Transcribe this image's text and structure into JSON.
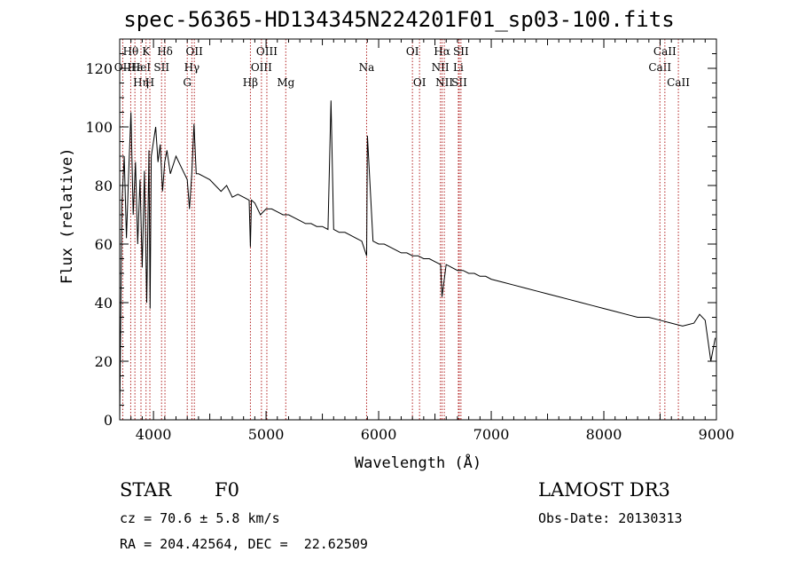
{
  "chart_data": {
    "type": "line",
    "title": "spec-56365-HD134345N224201F01_sp03-100.fits",
    "xlabel": "Wavelength (Å)",
    "ylabel": "Flux (relative)",
    "xlim": [
      3700,
      9000
    ],
    "ylim": [
      0,
      130
    ],
    "x_ticks": [
      4000,
      5000,
      6000,
      7000,
      8000,
      9000
    ],
    "y_ticks": [
      0,
      20,
      40,
      60,
      80,
      100,
      120
    ],
    "series": [
      {
        "name": "flux",
        "x": [
          3700,
          3720,
          3740,
          3760,
          3780,
          3800,
          3820,
          3840,
          3860,
          3880,
          3900,
          3920,
          3940,
          3960,
          3970,
          3980,
          4000,
          4020,
          4040,
          4060,
          4080,
          4100,
          4120,
          4150,
          4200,
          4250,
          4300,
          4320,
          4340,
          4360,
          4380,
          4400,
          4450,
          4500,
          4550,
          4600,
          4650,
          4700,
          4750,
          4800,
          4850,
          4861,
          4870,
          4900,
          4950,
          5000,
          5050,
          5100,
          5150,
          5200,
          5250,
          5300,
          5350,
          5400,
          5450,
          5500,
          5550,
          5577,
          5600,
          5650,
          5700,
          5750,
          5800,
          5850,
          5893,
          5900,
          5950,
          6000,
          6050,
          6100,
          6150,
          6200,
          6250,
          6300,
          6350,
          6400,
          6450,
          6500,
          6550,
          6563,
          6600,
          6650,
          6700,
          6750,
          6800,
          6850,
          6900,
          6950,
          7000,
          7100,
          7200,
          7300,
          7400,
          7500,
          7600,
          7700,
          7800,
          7900,
          8000,
          8100,
          8200,
          8300,
          8400,
          8500,
          8600,
          8700,
          8800,
          8850,
          8900,
          8950,
          8990
        ],
        "values": [
          0,
          74,
          90,
          62,
          85,
          105,
          70,
          88,
          60,
          82,
          52,
          85,
          40,
          92,
          38,
          90,
          95,
          100,
          88,
          94,
          78,
          88,
          92,
          84,
          90,
          86,
          82,
          72,
          84,
          101,
          84,
          84,
          83,
          82,
          80,
          78,
          80,
          76,
          77,
          76,
          75,
          59,
          75,
          74,
          70,
          72,
          72,
          71,
          70,
          70,
          69,
          68,
          67,
          67,
          66,
          66,
          65,
          109,
          65,
          64,
          64,
          63,
          62,
          61,
          56,
          97,
          61,
          60,
          60,
          59,
          58,
          57,
          57,
          56,
          56,
          55,
          55,
          54,
          53,
          42,
          53,
          52,
          51,
          51,
          50,
          50,
          49,
          49,
          48,
          47,
          46,
          45,
          44,
          43,
          42,
          41,
          40,
          39,
          38,
          37,
          36,
          35,
          35,
          34,
          33,
          32,
          33,
          36,
          34,
          20,
          28
        ]
      }
    ],
    "line_markers": [
      {
        "label": "OII",
        "wavelength": 3727,
        "row": 1
      },
      {
        "label": "Hθ",
        "wavelength": 3798,
        "row": 0
      },
      {
        "label": "Hε",
        "wavelength": 3835,
        "row": 1
      },
      {
        "label": "Hη",
        "wavelength": 3889,
        "row": 2
      },
      {
        "label": "HeI",
        "wavelength": 3889,
        "row": 1
      },
      {
        "label": "K",
        "wavelength": 3934,
        "row": 0
      },
      {
        "label": "H",
        "wavelength": 3968,
        "row": 2
      },
      {
        "label": "SII",
        "wavelength": 4072,
        "row": 1
      },
      {
        "label": "Hδ",
        "wavelength": 4102,
        "row": 0
      },
      {
        "label": "G",
        "wavelength": 4300,
        "row": 2
      },
      {
        "label": "Hγ",
        "wavelength": 4341,
        "row": 1
      },
      {
        "label": "OII",
        "wavelength": 4363,
        "row": 0
      },
      {
        "label": "Hβ",
        "wavelength": 4861,
        "row": 2
      },
      {
        "label": "OIII",
        "wavelength": 4959,
        "row": 1
      },
      {
        "label": "OIII",
        "wavelength": 5007,
        "row": 0
      },
      {
        "label": "Mg",
        "wavelength": 5175,
        "row": 2
      },
      {
        "label": "Na",
        "wavelength": 5893,
        "row": 1
      },
      {
        "label": "OI",
        "wavelength": 6300,
        "row": 0
      },
      {
        "label": "OI",
        "wavelength": 6363,
        "row": 2
      },
      {
        "label": "NII",
        "wavelength": 6548,
        "row": 1
      },
      {
        "label": "Hα",
        "wavelength": 6563,
        "row": 0
      },
      {
        "label": "NII",
        "wavelength": 6583,
        "row": 2
      },
      {
        "label": "Li",
        "wavelength": 6708,
        "row": 1
      },
      {
        "label": "SII",
        "wavelength": 6716,
        "row": 2
      },
      {
        "label": "SII",
        "wavelength": 6731,
        "row": 0
      },
      {
        "label": "CaII",
        "wavelength": 8498,
        "row": 1
      },
      {
        "label": "CaII",
        "wavelength": 8542,
        "row": 0
      },
      {
        "label": "CaII",
        "wavelength": 8662,
        "row": 2
      }
    ],
    "grid": false,
    "line_color": "#000000",
    "marker_color": "#b22222"
  },
  "info": {
    "class": "STAR",
    "subclass": "F0",
    "survey": "LAMOST DR3",
    "cz": "cz = 70.6 ± 5.8 km/s",
    "obs_date": "Obs-Date: 20130313",
    "coords": "RA = 204.42564, DEC =  22.62509"
  }
}
